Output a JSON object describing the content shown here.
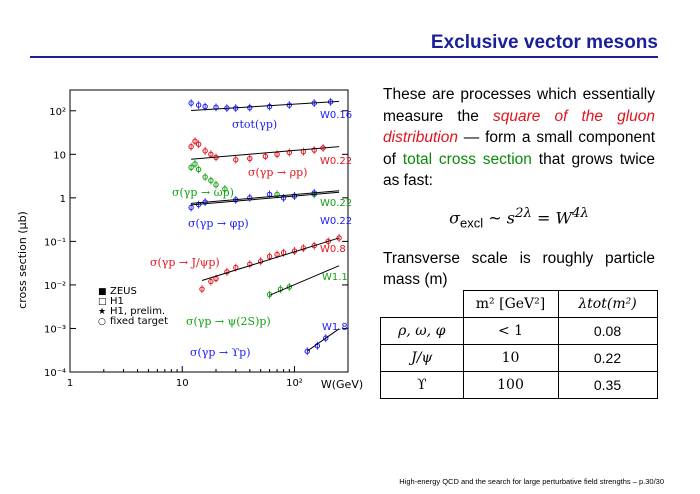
{
  "slide": {
    "title": "Exclusive vector mesons",
    "footer": "High-energy QCD and the search for large perturbative field strengths – p.30/30"
  },
  "text": {
    "intro_1": "These are processes which essentially measure the ",
    "intro_red": "square of the gluon distribution",
    "intro_2": " — form a small component of ",
    "intro_green": "total cross section",
    "intro_3": " that grows twice as fast:",
    "formula_lhs": "σ",
    "formula_sub": "excl",
    "formula_rest": " ~ s",
    "formula_exp1": "2λ",
    "formula_eq": " = W",
    "formula_exp2": "4λ",
    "scale_text": "Transverse scale is roughly particle mass (m)"
  },
  "table": {
    "header": [
      "m² [GeV²]",
      "λtot(m²)"
    ],
    "rows": [
      {
        "meson": "ρ, ω, φ",
        "m2": "< 1",
        "lambda": "0.08"
      },
      {
        "meson": "J/ψ",
        "m2": "10",
        "lambda": "0.22"
      },
      {
        "meson": "ϒ",
        "m2": "100",
        "lambda": "0.35"
      }
    ]
  },
  "chart_data": {
    "type": "scatter",
    "xlabel": "W(GeV)",
    "ylabel": "cross section (μb)",
    "xscale": "log",
    "yscale": "log",
    "xlim": [
      10,
      300
    ],
    "ylim": [
      0.0001,
      300
    ],
    "x_ticks": [
      "1",
      "10",
      "10²"
    ],
    "y_ticks": [
      "10²",
      "10",
      "1",
      "10⁻¹",
      "10⁻²",
      "10⁻³",
      "10⁻⁴"
    ],
    "legend": [
      "ZEUS",
      "H1",
      "H1, prelim.",
      "fixed target"
    ],
    "series": [
      {
        "name": "σtot(γp)",
        "color": "#1a1aff",
        "fit_label": "W^0.16",
        "exponent": 0.16,
        "x": [
          12,
          14,
          16,
          20,
          25,
          30,
          40,
          60,
          90,
          150,
          210
        ],
        "y": [
          150,
          135,
          125,
          120,
          115,
          115,
          118,
          125,
          135,
          150,
          160
        ]
      },
      {
        "name": "σ(γp → ρp)",
        "color": "#e0141e",
        "fit_label": "W^0.22",
        "exponent": 0.22,
        "x": [
          12,
          13,
          14,
          16,
          18,
          20,
          30,
          40,
          55,
          70,
          90,
          120,
          150,
          180
        ],
        "y": [
          15,
          20,
          17,
          12,
          10,
          8.5,
          7.5,
          8,
          9,
          10,
          11,
          11.5,
          12.5,
          14
        ]
      },
      {
        "name": "σ(γp → ωp)",
        "color": "#12a012",
        "fit_label": "W^0.22",
        "exponent": 0.22,
        "x": [
          12,
          13,
          14,
          16,
          18,
          20,
          24,
          70,
          150
        ],
        "y": [
          5,
          6,
          4.5,
          3,
          2.5,
          2,
          1.6,
          1.2,
          1.2
        ]
      },
      {
        "name": "σ(γp → φp)",
        "color": "#1a1aff",
        "fit_label": "W^0.22",
        "exponent": 0.22,
        "x": [
          12,
          14,
          16,
          30,
          40,
          60,
          80,
          100,
          150
        ],
        "y": [
          0.6,
          0.7,
          0.8,
          0.9,
          1.0,
          1.2,
          1.0,
          1.1,
          1.3
        ]
      },
      {
        "name": "σ(γp → J/ψp)",
        "color": "#e0141e",
        "fit_label": "W^0.8",
        "exponent": 0.8,
        "x": [
          15,
          18,
          20,
          25,
          30,
          40,
          50,
          60,
          70,
          80,
          100,
          120,
          150,
          200,
          250
        ],
        "y": [
          0.008,
          0.012,
          0.014,
          0.02,
          0.025,
          0.03,
          0.035,
          0.045,
          0.05,
          0.055,
          0.06,
          0.07,
          0.08,
          0.1,
          0.12
        ]
      },
      {
        "name": "σ(γp → ψ(2S)p)",
        "color": "#12a012",
        "fit_label": "W^1.1",
        "exponent": 1.1,
        "x": [
          60,
          75,
          90
        ],
        "y": [
          0.006,
          0.008,
          0.009
        ]
      },
      {
        "name": "σ(γp → ϒp)",
        "color": "#1a1aff",
        "fit_label": "W^1.8",
        "exponent": 1.8,
        "x": [
          130,
          160,
          190
        ],
        "y": [
          0.0003,
          0.0004,
          0.0006
        ]
      }
    ]
  }
}
